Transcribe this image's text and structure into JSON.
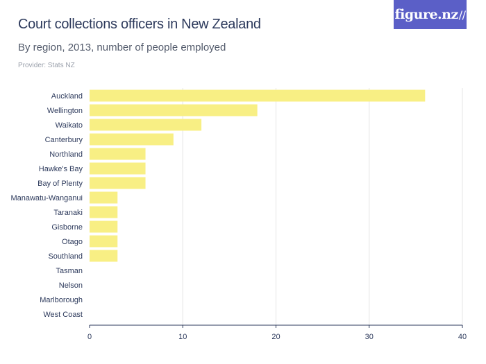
{
  "header": {
    "title": "Court collections officers in New Zealand",
    "subtitle": "By region, 2013, number of people employed",
    "provider": "Provider: Stats NZ",
    "logo_text": "figure.nz",
    "logo_color": "#5b5fc7"
  },
  "chart_data": {
    "type": "bar",
    "orientation": "horizontal",
    "title": "Court collections officers in New Zealand",
    "subtitle": "By region, 2013, number of people employed",
    "categories": [
      "Auckland",
      "Wellington",
      "Waikato",
      "Canterbury",
      "Northland",
      "Hawke's Bay",
      "Bay of Plenty",
      "Manawatu-Wanganui",
      "Taranaki",
      "Gisborne",
      "Otago",
      "Southland",
      "Tasman",
      "Nelson",
      "Marlborough",
      "West Coast"
    ],
    "values": [
      36,
      18,
      12,
      9,
      6,
      6,
      6,
      3,
      3,
      3,
      3,
      3,
      0,
      0,
      0,
      0
    ],
    "xlabel": "",
    "ylabel": "",
    "xlim": [
      0,
      40
    ],
    "xticks": [
      0,
      10,
      20,
      30,
      40
    ],
    "grid": true,
    "legend": "none",
    "bar_color": "#f8ef84",
    "grid_color": "#e4e4e4"
  }
}
